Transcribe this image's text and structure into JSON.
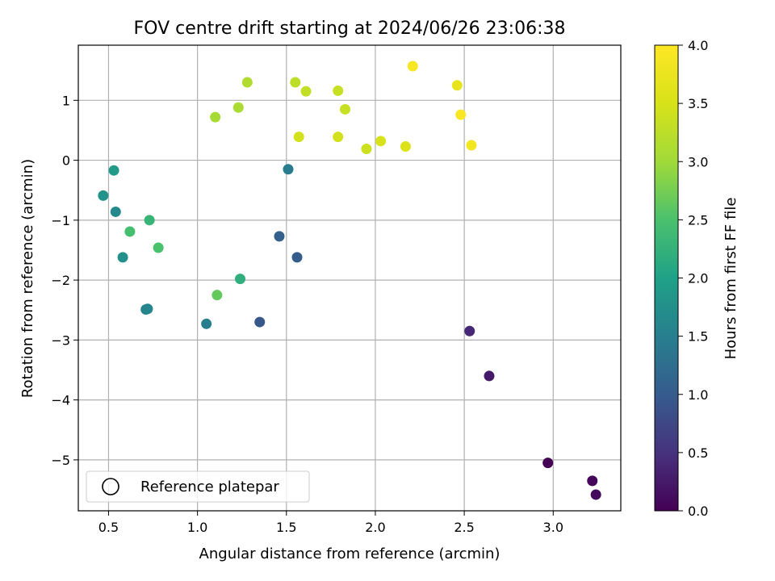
{
  "chart_data": {
    "type": "scatter",
    "title": "FOV centre drift starting at 2024/06/26 23:06:38",
    "xlabel": "Angular distance from reference (arcmin)",
    "ylabel": "Rotation from reference (arcmin)",
    "xlim": [
      0.33,
      3.38
    ],
    "ylim": [
      -5.85,
      1.92
    ],
    "xticks": [
      0.5,
      1.0,
      1.5,
      2.0,
      2.5,
      3.0
    ],
    "xtick_labels": [
      "0.5",
      "1.0",
      "1.5",
      "2.0",
      "2.5",
      "3.0"
    ],
    "yticks": [
      1,
      0,
      -1,
      -2,
      -3,
      -4,
      -5
    ],
    "ytick_labels": [
      "1",
      "0",
      "−1",
      "−2",
      "−3",
      "−4",
      "−5"
    ],
    "grid": true,
    "legend": {
      "position": "lower-left",
      "entries": [
        "Reference platepar"
      ]
    },
    "colorbar": {
      "label": "Hours from first FF file",
      "colormap": "viridis",
      "range": [
        0.0,
        4.0
      ],
      "ticks": [
        0.0,
        0.5,
        1.0,
        1.5,
        2.0,
        2.5,
        3.0,
        3.5,
        4.0
      ],
      "tick_labels": [
        "0.0",
        "0.5",
        "1.0",
        "1.5",
        "2.0",
        "2.5",
        "3.0",
        "3.5",
        "4.0"
      ]
    },
    "points": [
      {
        "x": 2.97,
        "y": -5.05,
        "hours": 0.0
      },
      {
        "x": 3.22,
        "y": -5.35,
        "hours": 0.05
      },
      {
        "x": 3.24,
        "y": -5.58,
        "hours": 0.1
      },
      {
        "x": 2.64,
        "y": -3.6,
        "hours": 0.25
      },
      {
        "x": 2.53,
        "y": -2.85,
        "hours": 0.4
      },
      {
        "x": 1.56,
        "y": -1.62,
        "hours": 1.0
      },
      {
        "x": 1.46,
        "y": -1.27,
        "hours": 1.05
      },
      {
        "x": 1.35,
        "y": -2.7,
        "hours": 0.95
      },
      {
        "x": 1.51,
        "y": -0.15,
        "hours": 1.45
      },
      {
        "x": 1.05,
        "y": -2.73,
        "hours": 1.5
      },
      {
        "x": 0.71,
        "y": -2.49,
        "hours": 1.55
      },
      {
        "x": 0.72,
        "y": -2.48,
        "hours": 1.6
      },
      {
        "x": 0.54,
        "y": -0.86,
        "hours": 1.65
      },
      {
        "x": 0.58,
        "y": -1.62,
        "hours": 1.75
      },
      {
        "x": 0.47,
        "y": -0.59,
        "hours": 1.8
      },
      {
        "x": 0.53,
        "y": -0.17,
        "hours": 1.9
      },
      {
        "x": 1.24,
        "y": -1.98,
        "hours": 2.2
      },
      {
        "x": 0.73,
        "y": -1.0,
        "hours": 2.3
      },
      {
        "x": 0.62,
        "y": -1.19,
        "hours": 2.45
      },
      {
        "x": 0.78,
        "y": -1.46,
        "hours": 2.5
      },
      {
        "x": 1.11,
        "y": -2.25,
        "hours": 2.65
      },
      {
        "x": 1.1,
        "y": 0.72,
        "hours": 3.05
      },
      {
        "x": 1.23,
        "y": 0.88,
        "hours": 3.1
      },
      {
        "x": 1.28,
        "y": 1.3,
        "hours": 3.15
      },
      {
        "x": 1.55,
        "y": 1.3,
        "hours": 3.25
      },
      {
        "x": 1.61,
        "y": 1.15,
        "hours": 3.3
      },
      {
        "x": 1.79,
        "y": 1.16,
        "hours": 3.35
      },
      {
        "x": 1.83,
        "y": 0.85,
        "hours": 3.35
      },
      {
        "x": 1.57,
        "y": 0.39,
        "hours": 3.45
      },
      {
        "x": 1.79,
        "y": 0.39,
        "hours": 3.45
      },
      {
        "x": 1.95,
        "y": 0.19,
        "hours": 3.4
      },
      {
        "x": 2.03,
        "y": 0.32,
        "hours": 3.5
      },
      {
        "x": 2.17,
        "y": 0.23,
        "hours": 3.55
      },
      {
        "x": 2.46,
        "y": 1.25,
        "hours": 3.7
      },
      {
        "x": 2.21,
        "y": 1.57,
        "hours": 3.9
      },
      {
        "x": 2.48,
        "y": 0.76,
        "hours": 3.95
      },
      {
        "x": 2.54,
        "y": 0.25,
        "hours": 3.85
      }
    ]
  }
}
